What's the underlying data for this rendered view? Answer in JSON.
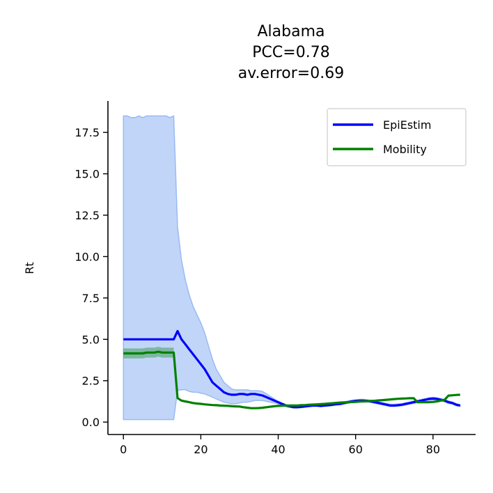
{
  "chart_data": {
    "type": "line",
    "title_lines": [
      "Alabama",
      "PCC=0.78",
      "av.error=0.69"
    ],
    "xlabel": "",
    "ylabel": "Rt",
    "xlim": [
      -4,
      91
    ],
    "ylim": [
      -0.75,
      19.4
    ],
    "x_ticks": [
      0,
      20,
      40,
      60,
      80
    ],
    "y_ticks": [
      0.0,
      2.5,
      5.0,
      7.5,
      10.0,
      12.5,
      15.0,
      17.5
    ],
    "y_tick_labels": [
      "0.0",
      "2.5",
      "5.0",
      "7.5",
      "10.0",
      "12.5",
      "15.0",
      "17.5"
    ],
    "grid": false,
    "legend_position": "top-right",
    "colors": {
      "epiestim": "#0000ff",
      "mobility": "#008000",
      "epiestim_band": "#6495ed",
      "mobility_band": "#008000"
    },
    "series": [
      {
        "name": "EpiEstim",
        "x": [
          0,
          1,
          2,
          3,
          4,
          5,
          6,
          7,
          8,
          9,
          10,
          11,
          12,
          13,
          14,
          15,
          16,
          17,
          18,
          19,
          20,
          21,
          22,
          23,
          24,
          25,
          26,
          27,
          28,
          29,
          30,
          31,
          32,
          33,
          34,
          35,
          36,
          37,
          38,
          39,
          40,
          41,
          42,
          43,
          44,
          45,
          46,
          47,
          48,
          49,
          50,
          51,
          52,
          53,
          54,
          55,
          56,
          57,
          58,
          59,
          60,
          61,
          62,
          63,
          64,
          65,
          66,
          67,
          68,
          69,
          70,
          71,
          72,
          73,
          74,
          75,
          76,
          77,
          78,
          79,
          80,
          81,
          82,
          83,
          84,
          85,
          86,
          87
        ],
        "y": [
          5.0,
          5.0,
          5.0,
          5.0,
          5.0,
          5.0,
          5.0,
          5.0,
          5.0,
          5.0,
          5.0,
          5.0,
          5.0,
          5.0,
          5.5,
          5.0,
          4.7,
          4.4,
          4.1,
          3.8,
          3.5,
          3.2,
          2.8,
          2.4,
          2.2,
          2.0,
          1.8,
          1.7,
          1.65,
          1.65,
          1.7,
          1.7,
          1.65,
          1.7,
          1.7,
          1.65,
          1.6,
          1.5,
          1.4,
          1.3,
          1.2,
          1.1,
          1.0,
          0.95,
          0.9,
          0.9,
          0.92,
          0.95,
          0.98,
          1.0,
          1.0,
          0.98,
          1.0,
          1.02,
          1.05,
          1.08,
          1.1,
          1.15,
          1.2,
          1.25,
          1.28,
          1.3,
          1.3,
          1.28,
          1.25,
          1.2,
          1.15,
          1.1,
          1.05,
          1.0,
          1.0,
          1.02,
          1.05,
          1.1,
          1.15,
          1.2,
          1.25,
          1.3,
          1.35,
          1.4,
          1.42,
          1.4,
          1.35,
          1.3,
          1.2,
          1.15,
          1.05,
          1.0
        ],
        "upper": [
          18.5,
          18.5,
          18.4,
          18.4,
          18.5,
          18.4,
          18.5,
          18.5,
          18.5,
          18.5,
          18.5,
          18.5,
          18.4,
          18.5,
          11.8,
          9.8,
          8.6,
          7.7,
          7.0,
          6.5,
          6.0,
          5.4,
          4.6,
          3.8,
          3.2,
          2.8,
          2.4,
          2.2,
          2.0,
          1.95,
          1.95,
          1.95,
          1.95,
          1.9,
          1.9,
          1.9,
          1.85,
          1.7,
          1.55,
          1.4,
          1.25,
          1.15,
          1.05,
          1.0,
          0.98,
          0.98,
          1.0,
          1.02,
          1.05,
          1.08,
          1.08,
          1.05,
          1.08,
          1.1,
          1.12,
          1.15,
          1.18,
          1.22,
          1.28,
          1.32,
          1.35,
          1.38,
          1.38,
          1.35,
          1.32,
          1.28,
          1.22,
          1.18,
          1.12,
          1.08,
          1.08,
          1.1,
          1.12,
          1.18,
          1.22,
          1.28,
          1.32,
          1.38,
          1.42,
          1.48,
          1.5,
          1.48,
          1.42,
          1.38,
          1.28,
          1.22,
          1.12,
          1.05
        ],
        "lower": [
          0.15,
          0.15,
          0.15,
          0.15,
          0.15,
          0.15,
          0.15,
          0.15,
          0.15,
          0.15,
          0.15,
          0.15,
          0.15,
          0.15,
          1.9,
          1.95,
          1.95,
          1.85,
          1.8,
          1.8,
          1.75,
          1.7,
          1.6,
          1.5,
          1.4,
          1.3,
          1.2,
          1.15,
          1.1,
          1.1,
          1.15,
          1.2,
          1.2,
          1.25,
          1.3,
          1.3,
          1.3,
          1.25,
          1.2,
          1.15,
          1.1,
          1.0,
          0.92,
          0.88,
          0.85,
          0.85,
          0.87,
          0.9,
          0.92,
          0.94,
          0.94,
          0.92,
          0.94,
          0.96,
          0.98,
          1.02,
          1.04,
          1.08,
          1.12,
          1.18,
          1.22,
          1.22,
          1.22,
          1.2,
          1.18,
          1.12,
          1.08,
          1.04,
          0.98,
          0.94,
          0.94,
          0.96,
          0.98,
          1.04,
          1.08,
          1.12,
          1.18,
          1.22,
          1.28,
          1.32,
          1.34,
          1.32,
          1.28,
          1.22,
          1.12,
          1.08,
          0.98,
          0.95
        ]
      },
      {
        "name": "Mobility",
        "x": [
          0,
          1,
          2,
          3,
          4,
          5,
          6,
          7,
          8,
          9,
          10,
          11,
          12,
          13,
          14,
          15,
          16,
          17,
          18,
          19,
          20,
          21,
          22,
          23,
          24,
          25,
          26,
          27,
          28,
          29,
          30,
          31,
          32,
          33,
          34,
          35,
          36,
          37,
          38,
          39,
          40,
          41,
          42,
          43,
          44,
          45,
          46,
          47,
          48,
          49,
          50,
          51,
          52,
          53,
          54,
          55,
          56,
          57,
          58,
          59,
          60,
          61,
          62,
          63,
          64,
          65,
          66,
          67,
          68,
          69,
          70,
          71,
          72,
          73,
          74,
          75,
          76,
          77,
          78,
          79,
          80,
          81,
          82,
          83,
          84,
          85,
          86,
          87
        ],
        "y": [
          4.15,
          4.15,
          4.15,
          4.15,
          4.15,
          4.15,
          4.2,
          4.2,
          4.2,
          4.25,
          4.2,
          4.2,
          4.2,
          4.2,
          1.45,
          1.3,
          1.25,
          1.2,
          1.15,
          1.12,
          1.1,
          1.07,
          1.05,
          1.03,
          1.02,
          1.0,
          0.99,
          0.98,
          0.96,
          0.95,
          0.94,
          0.9,
          0.87,
          0.84,
          0.84,
          0.85,
          0.87,
          0.9,
          0.93,
          0.96,
          0.98,
          0.99,
          1.0,
          1.0,
          1.0,
          1.0,
          1.02,
          1.03,
          1.05,
          1.06,
          1.07,
          1.09,
          1.1,
          1.12,
          1.14,
          1.16,
          1.18,
          1.19,
          1.2,
          1.21,
          1.22,
          1.24,
          1.25,
          1.26,
          1.28,
          1.29,
          1.31,
          1.33,
          1.35,
          1.37,
          1.39,
          1.41,
          1.42,
          1.43,
          1.44,
          1.44,
          1.2,
          1.2,
          1.2,
          1.2,
          1.22,
          1.25,
          1.3,
          1.35,
          1.6,
          1.62,
          1.64,
          1.65
        ],
        "band": 0.3,
        "band_x": [
          0,
          13
        ]
      }
    ]
  }
}
